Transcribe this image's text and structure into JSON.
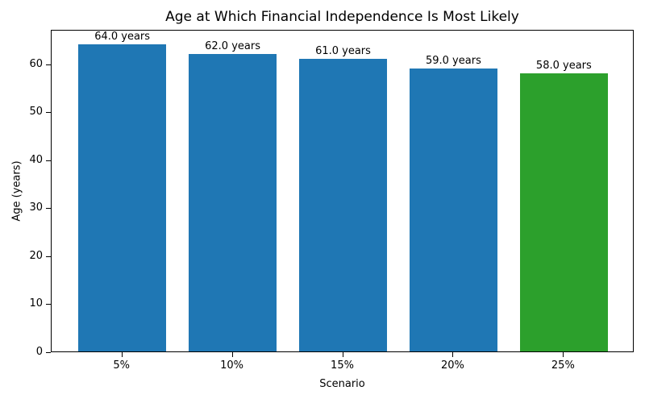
{
  "chart_data": {
    "type": "bar",
    "title": "Age at Which Financial Independence Is Most Likely",
    "xlabel": "Scenario",
    "ylabel": "Age (years)",
    "categories": [
      "5%",
      "10%",
      "15%",
      "20%",
      "25%"
    ],
    "values": [
      64.0,
      62.0,
      61.0,
      59.0,
      58.0
    ],
    "bar_labels": [
      "64.0 years",
      "62.0 years",
      "61.0 years",
      "59.0 years",
      "58.0 years"
    ],
    "bar_colors": [
      "#1f77b4",
      "#1f77b4",
      "#1f77b4",
      "#1f77b4",
      "#2ca02c"
    ],
    "yticks": [
      0,
      10,
      20,
      30,
      40,
      50,
      60
    ],
    "ylim": [
      0,
      67.2
    ],
    "grid": false,
    "legend": "none",
    "frame_color": "#000000",
    "background_color": "#ffffff"
  }
}
